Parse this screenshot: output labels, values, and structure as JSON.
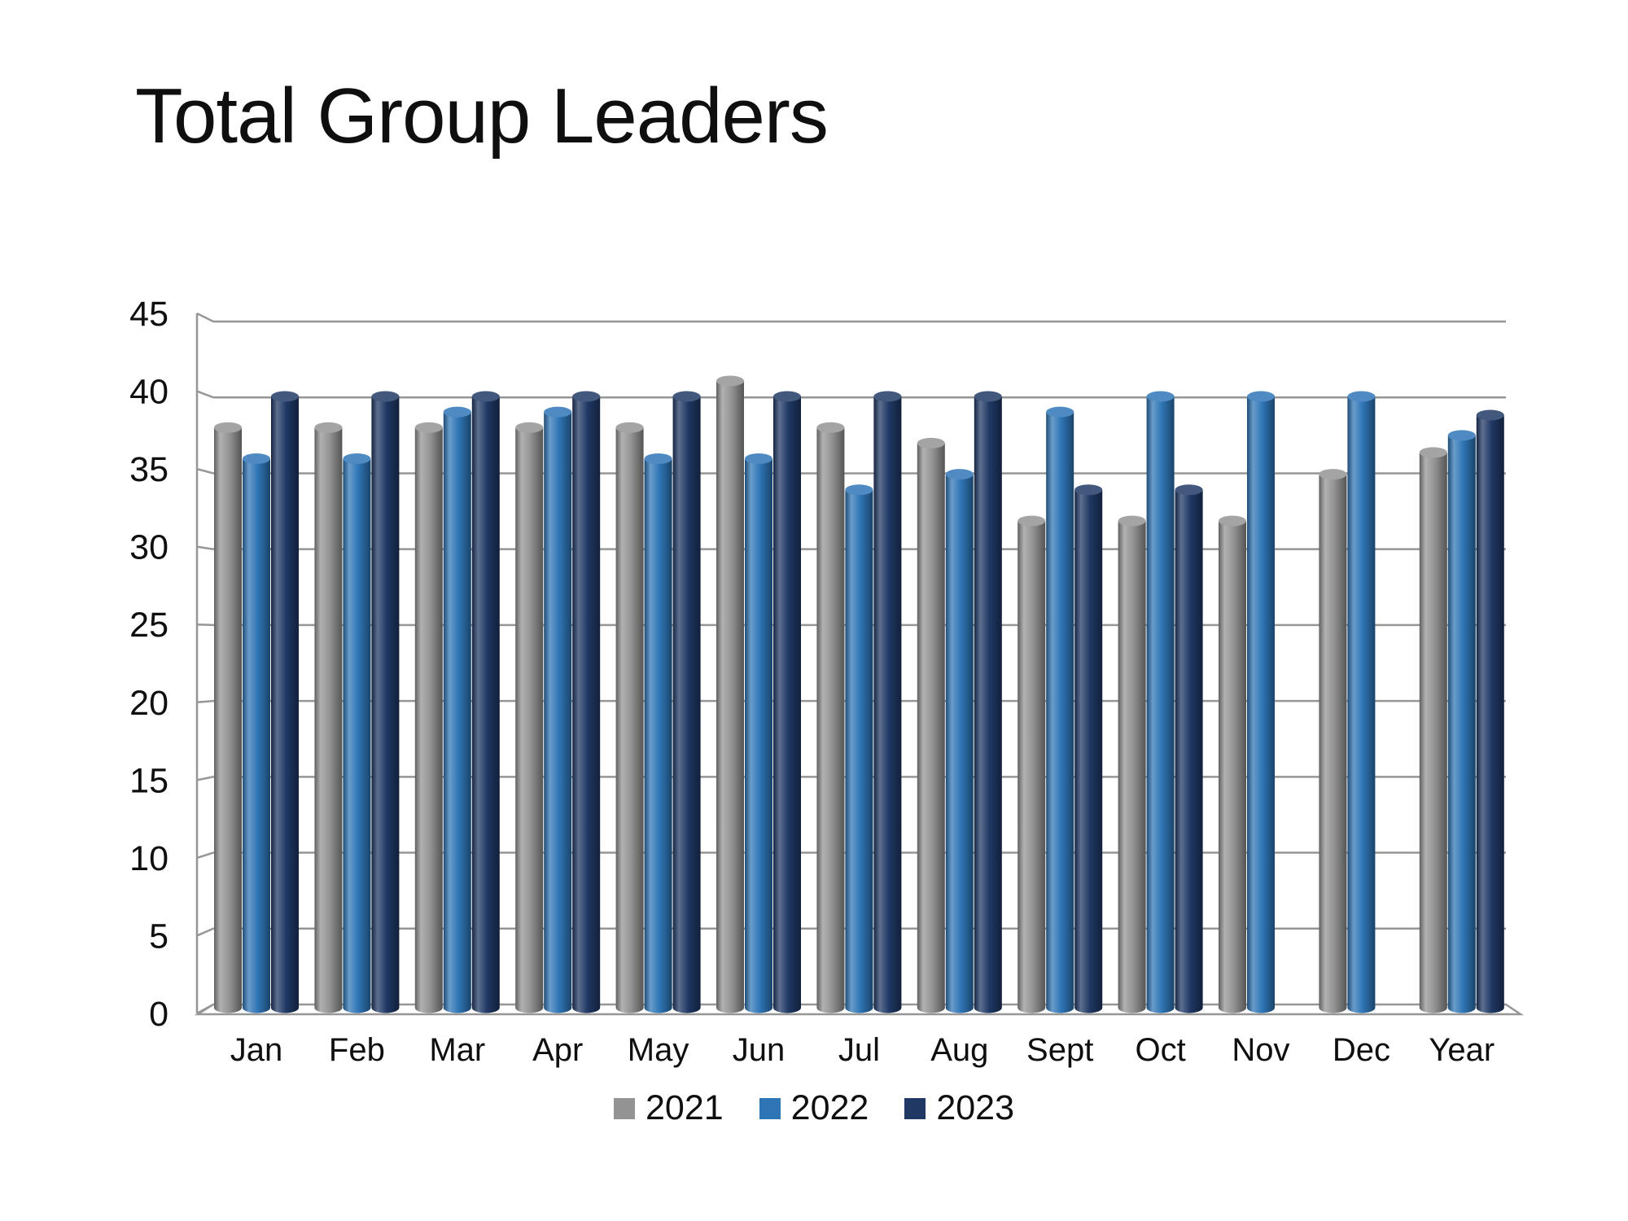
{
  "title": "Total Group Leaders",
  "chart_data": {
    "type": "bar",
    "subtype": "3d-cylinder-clustered",
    "title": "Total Group Leaders",
    "categories": [
      "Jan",
      "Feb",
      "Mar",
      "Apr",
      "May",
      "Jun",
      "Jul",
      "Aug",
      "Sept",
      "Oct",
      "Nov",
      "Dec",
      "Year"
    ],
    "series": [
      {
        "name": "2021",
        "color": "#939393",
        "values": [
          38,
          38,
          38,
          38,
          38,
          41,
          38,
          37,
          32,
          32,
          32,
          35,
          36.4
        ]
      },
      {
        "name": "2022",
        "color": "#2e75b6",
        "values": [
          36,
          36,
          39,
          39,
          36,
          36,
          34,
          35,
          39,
          40,
          40,
          40,
          37.5
        ]
      },
      {
        "name": "2023",
        "color": "#1f3864",
        "values": [
          40,
          40,
          40,
          40,
          40,
          40,
          40,
          40,
          34,
          34,
          null,
          null,
          38.8
        ]
      }
    ],
    "xlabel": "",
    "ylabel": "",
    "ylim": [
      0,
      45
    ],
    "yticks": [
      0,
      5,
      10,
      15,
      20,
      25,
      30,
      35,
      40,
      45
    ],
    "grid": true,
    "grid_color": "#969696",
    "text_color": "#0f0f0f",
    "legend_position": "bottom"
  }
}
